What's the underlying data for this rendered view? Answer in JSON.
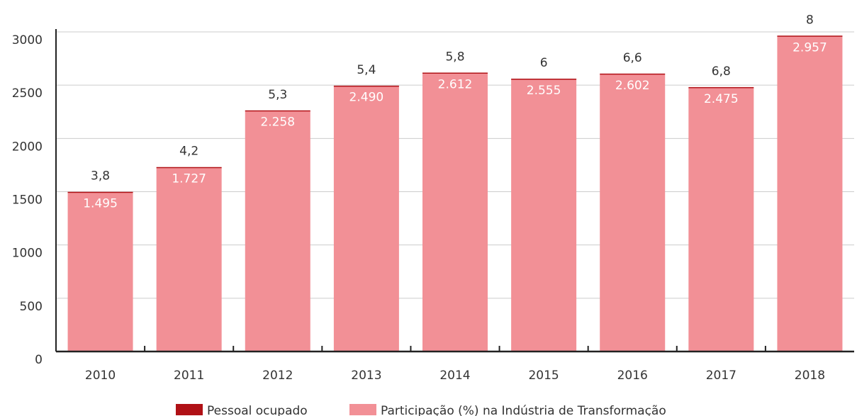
{
  "chart_data": {
    "type": "bar",
    "stacked": true,
    "categories": [
      "2010",
      "2011",
      "2012",
      "2013",
      "2014",
      "2015",
      "2016",
      "2017",
      "2018"
    ],
    "series": [
      {
        "name": "Pessoal ocupado",
        "color": "#b01116",
        "values": [
          3.8,
          4.2,
          5.3,
          5.4,
          5.8,
          6,
          6.6,
          6.8,
          8
        ],
        "value_labels": [
          "3,8",
          "4,2",
          "5,3",
          "5,4",
          "5,8",
          "6",
          "6,6",
          "6,8",
          "8"
        ]
      },
      {
        "name": "Participação (%) na Indústria de Transformação",
        "color": "#f29096",
        "values": [
          1495,
          1727,
          2258,
          2490,
          2612,
          2555,
          2602,
          2475,
          2957
        ],
        "value_labels": [
          "1.495",
          "1.727",
          "2.258",
          "2.490",
          "2.612",
          "2.555",
          "2.602",
          "2.475",
          "2.957"
        ]
      }
    ],
    "ylim": [
      0,
      3000
    ],
    "yticks": [
      0,
      500,
      1000,
      1500,
      2000,
      2500,
      3000
    ],
    "grid": true,
    "legend": "bottom"
  }
}
